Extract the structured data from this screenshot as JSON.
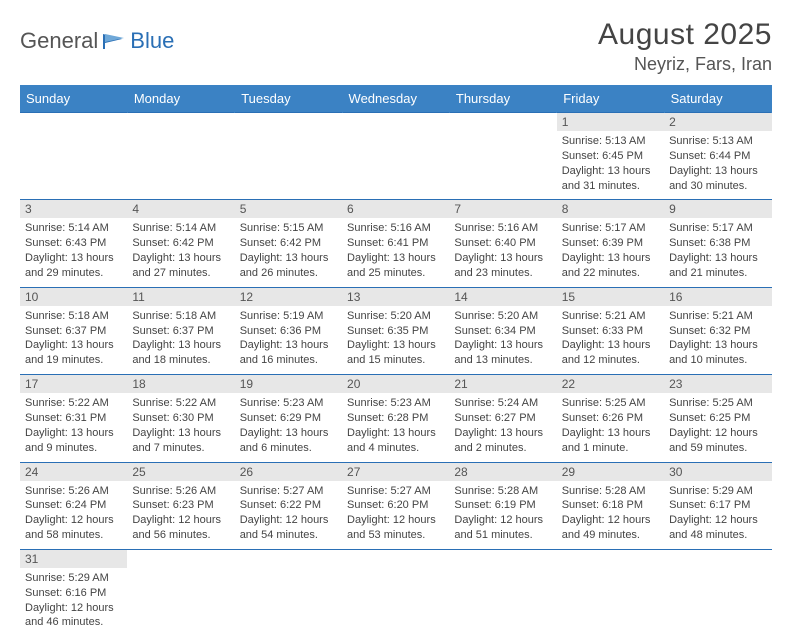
{
  "logo": {
    "part1": "General",
    "part2": "Blue"
  },
  "title": "August 2025",
  "location": "Neyriz, Fars, Iran",
  "colors": {
    "header_bg": "#3b82c4",
    "header_text": "#ffffff",
    "border": "#2a6fb5",
    "daynum_bg": "#e7e7e7",
    "text": "#444444",
    "logo_blue": "#2a6fb5",
    "logo_gray": "#555555"
  },
  "weekdays": [
    "Sunday",
    "Monday",
    "Tuesday",
    "Wednesday",
    "Thursday",
    "Friday",
    "Saturday"
  ],
  "weeks": [
    [
      null,
      null,
      null,
      null,
      null,
      {
        "n": "1",
        "sr": "5:13 AM",
        "ss": "6:45 PM",
        "d1": "13 hours",
        "d2": "and 31 minutes."
      },
      {
        "n": "2",
        "sr": "5:13 AM",
        "ss": "6:44 PM",
        "d1": "13 hours",
        "d2": "and 30 minutes."
      }
    ],
    [
      {
        "n": "3",
        "sr": "5:14 AM",
        "ss": "6:43 PM",
        "d1": "13 hours",
        "d2": "and 29 minutes."
      },
      {
        "n": "4",
        "sr": "5:14 AM",
        "ss": "6:42 PM",
        "d1": "13 hours",
        "d2": "and 27 minutes."
      },
      {
        "n": "5",
        "sr": "5:15 AM",
        "ss": "6:42 PM",
        "d1": "13 hours",
        "d2": "and 26 minutes."
      },
      {
        "n": "6",
        "sr": "5:16 AM",
        "ss": "6:41 PM",
        "d1": "13 hours",
        "d2": "and 25 minutes."
      },
      {
        "n": "7",
        "sr": "5:16 AM",
        "ss": "6:40 PM",
        "d1": "13 hours",
        "d2": "and 23 minutes."
      },
      {
        "n": "8",
        "sr": "5:17 AM",
        "ss": "6:39 PM",
        "d1": "13 hours",
        "d2": "and 22 minutes."
      },
      {
        "n": "9",
        "sr": "5:17 AM",
        "ss": "6:38 PM",
        "d1": "13 hours",
        "d2": "and 21 minutes."
      }
    ],
    [
      {
        "n": "10",
        "sr": "5:18 AM",
        "ss": "6:37 PM",
        "d1": "13 hours",
        "d2": "and 19 minutes."
      },
      {
        "n": "11",
        "sr": "5:18 AM",
        "ss": "6:37 PM",
        "d1": "13 hours",
        "d2": "and 18 minutes."
      },
      {
        "n": "12",
        "sr": "5:19 AM",
        "ss": "6:36 PM",
        "d1": "13 hours",
        "d2": "and 16 minutes."
      },
      {
        "n": "13",
        "sr": "5:20 AM",
        "ss": "6:35 PM",
        "d1": "13 hours",
        "d2": "and 15 minutes."
      },
      {
        "n": "14",
        "sr": "5:20 AM",
        "ss": "6:34 PM",
        "d1": "13 hours",
        "d2": "and 13 minutes."
      },
      {
        "n": "15",
        "sr": "5:21 AM",
        "ss": "6:33 PM",
        "d1": "13 hours",
        "d2": "and 12 minutes."
      },
      {
        "n": "16",
        "sr": "5:21 AM",
        "ss": "6:32 PM",
        "d1": "13 hours",
        "d2": "and 10 minutes."
      }
    ],
    [
      {
        "n": "17",
        "sr": "5:22 AM",
        "ss": "6:31 PM",
        "d1": "13 hours",
        "d2": "and 9 minutes."
      },
      {
        "n": "18",
        "sr": "5:22 AM",
        "ss": "6:30 PM",
        "d1": "13 hours",
        "d2": "and 7 minutes."
      },
      {
        "n": "19",
        "sr": "5:23 AM",
        "ss": "6:29 PM",
        "d1": "13 hours",
        "d2": "and 6 minutes."
      },
      {
        "n": "20",
        "sr": "5:23 AM",
        "ss": "6:28 PM",
        "d1": "13 hours",
        "d2": "and 4 minutes."
      },
      {
        "n": "21",
        "sr": "5:24 AM",
        "ss": "6:27 PM",
        "d1": "13 hours",
        "d2": "and 2 minutes."
      },
      {
        "n": "22",
        "sr": "5:25 AM",
        "ss": "6:26 PM",
        "d1": "13 hours",
        "d2": "and 1 minute."
      },
      {
        "n": "23",
        "sr": "5:25 AM",
        "ss": "6:25 PM",
        "d1": "12 hours",
        "d2": "and 59 minutes."
      }
    ],
    [
      {
        "n": "24",
        "sr": "5:26 AM",
        "ss": "6:24 PM",
        "d1": "12 hours",
        "d2": "and 58 minutes."
      },
      {
        "n": "25",
        "sr": "5:26 AM",
        "ss": "6:23 PM",
        "d1": "12 hours",
        "d2": "and 56 minutes."
      },
      {
        "n": "26",
        "sr": "5:27 AM",
        "ss": "6:22 PM",
        "d1": "12 hours",
        "d2": "and 54 minutes."
      },
      {
        "n": "27",
        "sr": "5:27 AM",
        "ss": "6:20 PM",
        "d1": "12 hours",
        "d2": "and 53 minutes."
      },
      {
        "n": "28",
        "sr": "5:28 AM",
        "ss": "6:19 PM",
        "d1": "12 hours",
        "d2": "and 51 minutes."
      },
      {
        "n": "29",
        "sr": "5:28 AM",
        "ss": "6:18 PM",
        "d1": "12 hours",
        "d2": "and 49 minutes."
      },
      {
        "n": "30",
        "sr": "5:29 AM",
        "ss": "6:17 PM",
        "d1": "12 hours",
        "d2": "and 48 minutes."
      }
    ],
    [
      {
        "n": "31",
        "sr": "5:29 AM",
        "ss": "6:16 PM",
        "d1": "12 hours",
        "d2": "and 46 minutes."
      },
      null,
      null,
      null,
      null,
      null,
      null
    ]
  ],
  "labels": {
    "sunrise": "Sunrise: ",
    "sunset": "Sunset: ",
    "daylight": "Daylight: "
  }
}
